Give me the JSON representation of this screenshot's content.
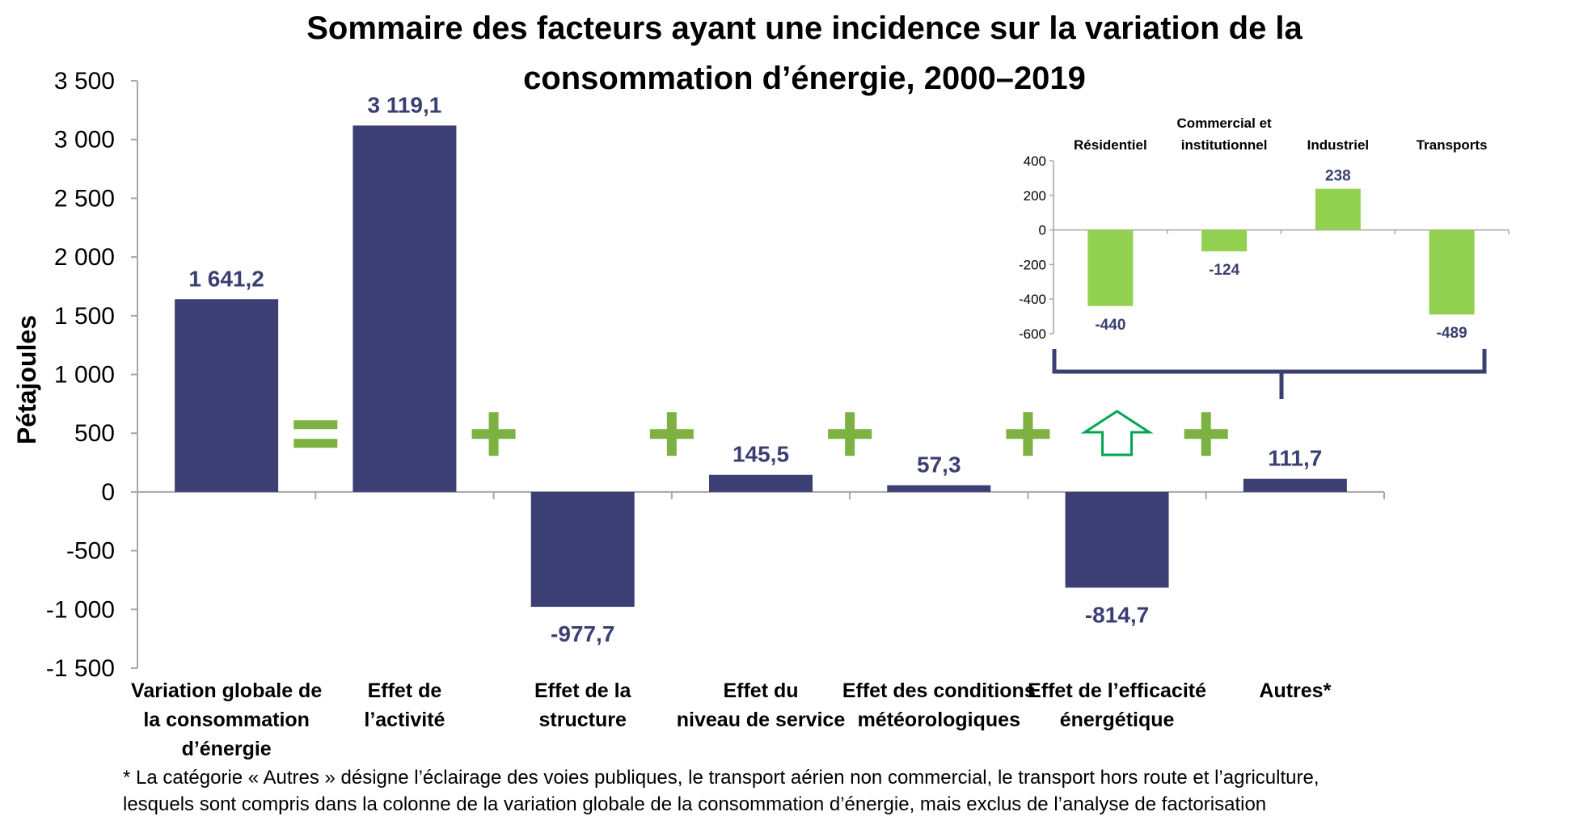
{
  "colors": {
    "bar": "#3b3f73",
    "inset_bar": "#92d050",
    "operator": "#7db141",
    "arrow": "#00a650",
    "bracket": "#3b3f73",
    "axis": "#a6a6a6",
    "label": "#3b3f73"
  },
  "chart_data": [
    {
      "type": "bar",
      "title": "Sommaire des facteurs ayant une incidence sur la variation de la consommation d’énergie, 2000–2019",
      "title_lines": [
        "Sommaire des facteurs ayant une incidence sur la variation de la",
        "consommation d’énergie, 2000–2019"
      ],
      "ylabel": "Pétajoules",
      "xlabel": "",
      "ylim": [
        -1500,
        3500
      ],
      "yticks": [
        3500,
        3000,
        2500,
        2000,
        1500,
        1000,
        500,
        0,
        -500,
        -1000,
        -1500
      ],
      "ytick_labels": [
        "3 500",
        "3 000",
        "2 500",
        "2 000",
        "1 500",
        "1 000",
        "500",
        "0",
        "-500",
        "-1 000",
        "-1 500"
      ],
      "categories": [
        "Variation globale de la consommation d’énergie",
        "Effet de l’activité",
        "Effet de la structure",
        "Effet du niveau de service",
        "Effet des conditions météorologiques",
        "Effet de l’efficacité énergétique",
        "Autres*"
      ],
      "category_lines": [
        [
          "Variation globale de",
          "la consommation",
          "d’énergie"
        ],
        [
          "Effet de",
          "l’activité"
        ],
        [
          "Effet de la",
          "structure"
        ],
        [
          "Effet du",
          "niveau de service"
        ],
        [
          "Effet des conditions",
          "météorologiques"
        ],
        [
          "Effet de l’efficacité",
          "énergétique"
        ],
        [
          "Autres*"
        ]
      ],
      "values": [
        1641.2,
        3119.1,
        -977.7,
        145.5,
        57.3,
        -814.7,
        111.7
      ],
      "value_labels": [
        "1 641,2",
        "3 119,1",
        "-977,7",
        "145,5",
        "57,3",
        "-814,7",
        "111,7"
      ],
      "operators": [
        "=",
        "+",
        "+",
        "+",
        "+",
        "+"
      ],
      "grid": false
    },
    {
      "type": "bar",
      "title": "",
      "ylim": [
        -600,
        400
      ],
      "yticks": [
        400,
        200,
        0,
        -200,
        -400,
        -600
      ],
      "ytick_labels": [
        "400",
        "200",
        "0",
        "-200",
        "-400",
        "-600"
      ],
      "categories": [
        "Résidentiel",
        "Commercial et institutionnel",
        "Industriel",
        "Transports"
      ],
      "category_lines": [
        [
          "Résidentiel"
        ],
        [
          "Commercial et",
          "institutionnel"
        ],
        [
          "Industriel"
        ],
        [
          "Transports"
        ]
      ],
      "values": [
        -440,
        -124,
        238,
        -489
      ],
      "value_labels": [
        "-440",
        "-124",
        "238",
        "-489"
      ],
      "grid": false
    }
  ],
  "footnote": [
    "* La catégorie « Autres » désigne l’éclairage des voies publiques, le transport aérien non commercial, le transport hors route et l’agriculture,",
    "lesquels sont compris dans la colonne de la variation globale de la consommation d’énergie, mais exclus de l’analyse de factorisation"
  ]
}
